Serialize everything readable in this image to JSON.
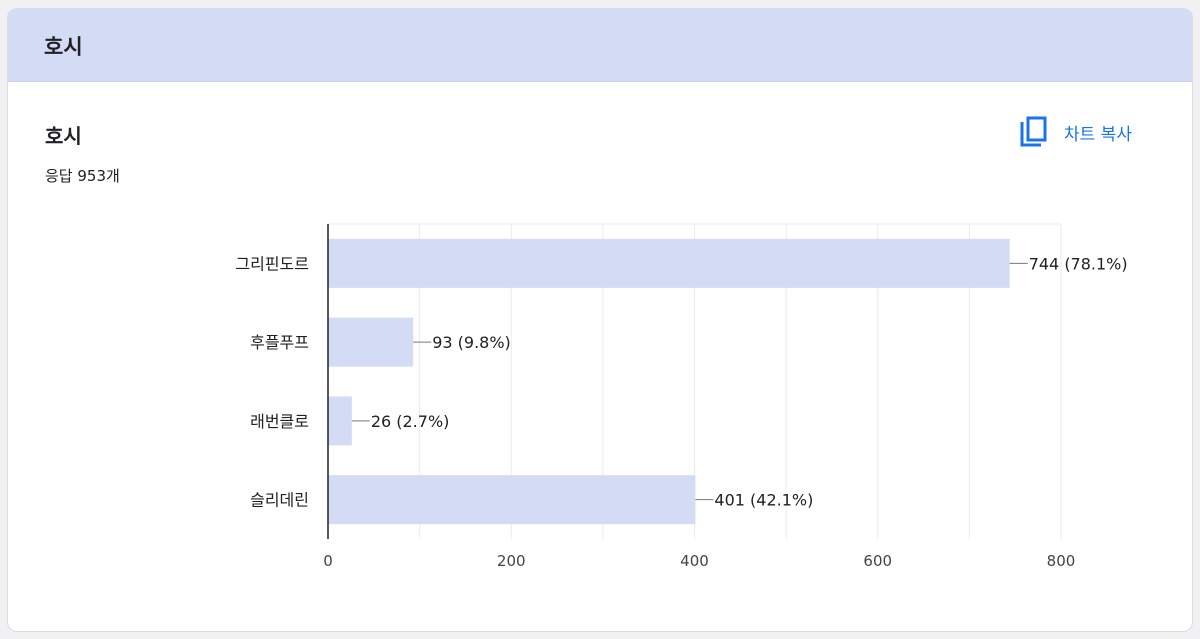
{
  "header": {
    "title": "호시"
  },
  "chart_card": {
    "title": "호시",
    "response_count": "응답 953개",
    "copy_button_label": "차트 복사"
  },
  "colors": {
    "bar": "#d3dbf5",
    "accent": "#1a73e8",
    "header_bg": "#d3dbf5"
  },
  "chart_data": {
    "type": "bar",
    "orientation": "horizontal",
    "categories": [
      "그리핀도르",
      "후플푸프",
      "래번클로",
      "슬리데린"
    ],
    "values": [
      744,
      93,
      26,
      401
    ],
    "data_labels": [
      "744 (78.1%)",
      "93 (9.8%)",
      "26 (2.7%)",
      "401 (42.1%)"
    ],
    "xlim": [
      0,
      800
    ],
    "x_ticks": [
      0,
      200,
      400,
      600,
      800
    ],
    "grid": true,
    "title": "호시",
    "xlabel": "",
    "ylabel": ""
  }
}
